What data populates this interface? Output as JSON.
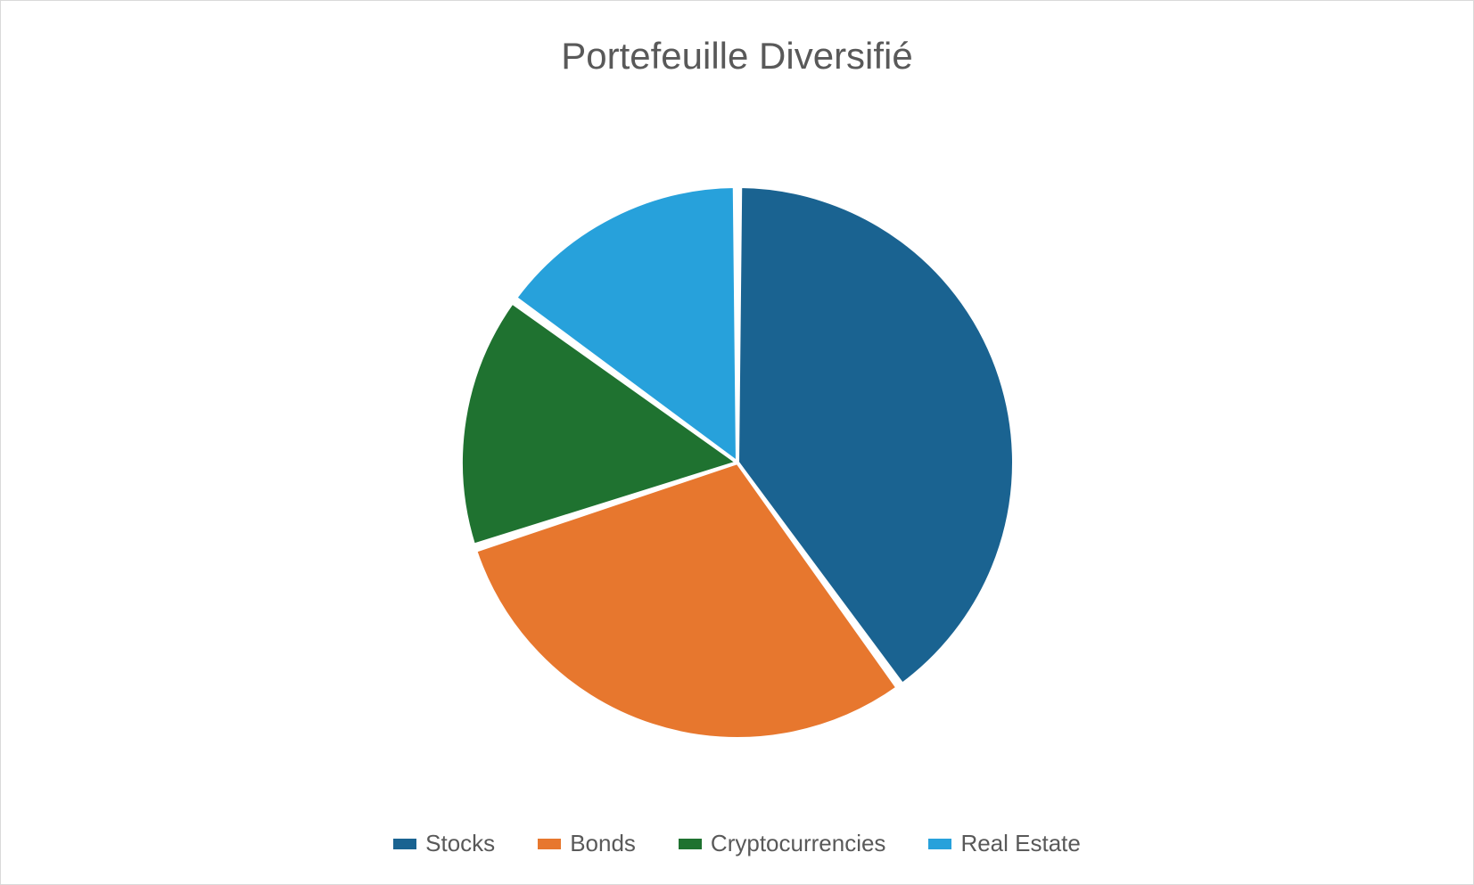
{
  "chart": {
    "type": "pie",
    "title": "Portefeuille Diversifié",
    "title_fontsize": 42,
    "title_color": "#595959",
    "background_color": "#ffffff",
    "border_color": "#d9d9d9",
    "pie_radius": 310,
    "slice_gap_deg": 1.2,
    "slice_border_color": "#ffffff",
    "slice_border_width": 4,
    "start_angle_deg": -90,
    "series": [
      {
        "label": "Stocks",
        "value": 40,
        "color": "#1a6391"
      },
      {
        "label": "Bonds",
        "value": 30,
        "color": "#e7772e"
      },
      {
        "label": "Cryptocurrencies",
        "value": 15,
        "color": "#1f7230"
      },
      {
        "label": "Real Estate",
        "value": 15,
        "color": "#27a1db"
      }
    ],
    "legend": {
      "position": "bottom",
      "fontsize": 26,
      "text_color": "#595959",
      "swatch_width": 26,
      "swatch_height": 12,
      "item_gap": 48
    }
  }
}
